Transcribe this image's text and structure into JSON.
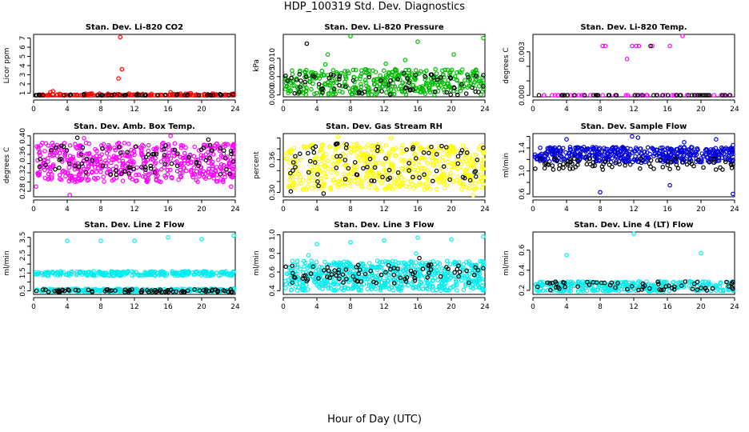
{
  "page": {
    "title": "HDP_100319  Std. Dev. Diagnostics",
    "xlabel": "Hour of Day (UTC)"
  },
  "chart_data": [
    {
      "type": "scatter",
      "title": "Stan. Dev. Li-820 CO2",
      "ylabel": "Licor ppm",
      "xlim": [
        0,
        24
      ],
      "ylim": [
        0.6,
        7.4
      ],
      "xticks": [
        0,
        4,
        8,
        12,
        16,
        20,
        24
      ],
      "yticks": [
        1,
        2,
        3,
        4,
        5,
        6,
        7
      ],
      "series": [
        {
          "color": "#ff0000",
          "band": [
            0.6,
            0.95
          ],
          "count": 160,
          "seed": 11,
          "points": [
            [
              10.3,
              7.1
            ],
            [
              10.5,
              3.6
            ],
            [
              10.1,
              2.6
            ],
            [
              2.3,
              1.2
            ],
            [
              2.0,
              1.1
            ],
            [
              16.3,
              1.1
            ],
            [
              6.2,
              0.95
            ],
            [
              18.7,
              1.0
            ],
            [
              21.3,
              0.95
            ]
          ]
        },
        {
          "color": "#000000",
          "band": [
            0.55,
            0.9
          ],
          "count": 45,
          "seed": 12,
          "points": []
        }
      ]
    },
    {
      "type": "scatter",
      "title": "Stan. Dev. Li-820 Pressure",
      "ylabel": "kPa",
      "xlim": [
        0,
        24
      ],
      "ylim": [
        -0.0005,
        0.0165
      ],
      "xticks": [
        0,
        4,
        8,
        12,
        16,
        20,
        24
      ],
      "yticks": [
        0.0,
        0.005,
        0.01
      ],
      "ytick_labels": [
        "0.000",
        "0.005",
        "0.010"
      ],
      "series": [
        {
          "color": "#00bb00",
          "band": [
            0.0,
            0.007
          ],
          "count": 400,
          "seed": 21,
          "points": [
            [
              8.0,
              0.016
            ],
            [
              24.0,
              0.0155
            ],
            [
              16.0,
              0.0145
            ],
            [
              5.3,
              0.011
            ],
            [
              20.3,
              0.011
            ],
            [
              14.5,
              0.0095
            ],
            [
              12.2,
              0.0085
            ],
            [
              5.0,
              0.0083
            ]
          ]
        },
        {
          "color": "#000000",
          "band": [
            0.0,
            0.006
          ],
          "count": 70,
          "seed": 22,
          "points": [
            [
              2.8,
              0.014
            ]
          ]
        }
      ]
    },
    {
      "type": "scatter",
      "title": "Stan. Dev. Li-820 Temp.",
      "ylabel": "degrees C",
      "xlim": [
        0,
        24
      ],
      "ylim": [
        -0.0001,
        0.0042
      ],
      "xticks": [
        0,
        4,
        8,
        12,
        16,
        20,
        24
      ],
      "yticks": [
        0.0,
        0.001,
        0.002,
        0.003
      ],
      "ytick_labels": [
        "0.000",
        "",
        "",
        "0.003"
      ],
      "series": [
        {
          "color": "#ff00ff",
          "band": [
            0.0,
            0.0
          ],
          "count": 46,
          "seed": 31,
          "points": [
            [
              8.3,
              0.0034
            ],
            [
              8.6,
              0.0034
            ],
            [
              11.2,
              0.0025
            ],
            [
              11.8,
              0.0034
            ],
            [
              12.3,
              0.0034
            ],
            [
              12.6,
              0.0034
            ],
            [
              14.2,
              0.0034
            ],
            [
              16.3,
              0.0034
            ],
            [
              17.8,
              0.0042
            ]
          ]
        },
        {
          "color": "#000000",
          "band": [
            0.0,
            0.0
          ],
          "count": 40,
          "seed": 32,
          "points": [
            [
              14.0,
              0.0034
            ]
          ]
        }
      ]
    },
    {
      "type": "scatter",
      "title": "Stan. Dev. Amb. Box Temp.",
      "ylabel": "degrees C",
      "xlim": [
        0,
        24
      ],
      "ylim": [
        0.268,
        0.405
      ],
      "xticks": [
        0,
        4,
        8,
        12,
        16,
        20,
        24
      ],
      "yticks": [
        0.28,
        0.3,
        0.32,
        0.34,
        0.36,
        0.38,
        0.4
      ],
      "ytick_labels": [
        "0.28",
        "",
        "0.32",
        "",
        "0.36",
        "",
        "0.40"
      ],
      "series": [
        {
          "color": "#ff00ff",
          "band": [
            0.3,
            0.385
          ],
          "count": 520,
          "seed": 41,
          "points": [
            [
              4.3,
              0.272
            ],
            [
              16.3,
              0.4
            ],
            [
              0.3,
              0.29
            ],
            [
              23.5,
              0.29
            ],
            [
              6.0,
              0.395
            ]
          ]
        },
        {
          "color": "#000000",
          "band": [
            0.315,
            0.38
          ],
          "count": 75,
          "seed": 42,
          "points": [
            [
              5.2,
              0.396
            ],
            [
              20.8,
              0.392
            ]
          ]
        }
      ]
    },
    {
      "type": "scatter",
      "title": "Stan. Dev. Gas Stream RH",
      "ylabel": "percent",
      "xlim": [
        0,
        24
      ],
      "ylim": [
        0.292,
        0.408
      ],
      "xticks": [
        0,
        4,
        8,
        12,
        16,
        20,
        24
      ],
      "yticks": [
        0.3,
        0.32,
        0.34,
        0.36,
        0.38,
        0.4
      ],
      "ytick_labels": [
        "0.30",
        "",
        "",
        "0.36",
        "",
        ""
      ],
      "series": [
        {
          "color": "#ffff00",
          "band": [
            0.305,
            0.39
          ],
          "count": 520,
          "seed": 51,
          "points": [
            [
              22.6,
              0.295
            ],
            [
              6.5,
              0.402
            ],
            [
              12.8,
              0.4
            ]
          ]
        },
        {
          "color": "#000000",
          "band": [
            0.32,
            0.39
          ],
          "count": 75,
          "seed": 52,
          "points": [
            [
              4.2,
              0.312
            ],
            [
              4.8,
              0.298
            ],
            [
              0.9,
              0.302
            ]
          ]
        }
      ]
    },
    {
      "type": "scatter",
      "title": "Stan. Dev. Sample Flow",
      "ylabel": "ml/min",
      "xlim": [
        0,
        24
      ],
      "ylim": [
        0.55,
        1.65
      ],
      "xticks": [
        0,
        4,
        8,
        12,
        16,
        20,
        24
      ],
      "yticks": [
        0.6,
        0.8,
        1.0,
        1.2,
        1.4,
        1.6
      ],
      "ytick_labels": [
        "0.6",
        "",
        "1.0",
        "",
        "1.4",
        ""
      ],
      "series": [
        {
          "color": "#0000dd",
          "band": [
            1.15,
            1.42
          ],
          "count": 460,
          "seed": 61,
          "points": [
            [
              8.0,
              0.63
            ],
            [
              16.3,
              0.75
            ],
            [
              23.8,
              0.6
            ],
            [
              4.0,
              1.55
            ],
            [
              11.8,
              1.6
            ],
            [
              12.5,
              1.58
            ],
            [
              21.8,
              1.55
            ],
            [
              24.0,
              1.45
            ],
            [
              18.0,
              1.5
            ]
          ]
        },
        {
          "color": "#000000",
          "band": [
            1.02,
            1.22
          ],
          "count": 80,
          "seed": 62,
          "points": [
            [
              24.0,
              1.12
            ]
          ]
        }
      ]
    },
    {
      "type": "scatter",
      "title": "Stan. Dev. Line 2 Flow",
      "ylabel": "ml/min",
      "xlim": [
        0,
        24
      ],
      "ylim": [
        0.3,
        3.8
      ],
      "xticks": [
        0,
        4,
        8,
        12,
        16,
        20,
        24
      ],
      "yticks": [
        0.5,
        1.0,
        1.5,
        2.0,
        2.5,
        3.0,
        3.5
      ],
      "ytick_labels": [
        "0.5",
        "",
        "1.5",
        "",
        "2.5",
        "",
        "3.5"
      ],
      "series": [
        {
          "color": "#00eeee",
          "band": [
            1.35,
            1.6
          ],
          "count": 260,
          "seed": 71,
          "points": [
            [
              4.0,
              3.3
            ],
            [
              8.0,
              3.3
            ],
            [
              12.0,
              3.3
            ],
            [
              16.0,
              3.5
            ],
            [
              20.0,
              3.4
            ],
            [
              24.0,
              3.6
            ]
          ]
        },
        {
          "color": "#00eeee",
          "band": [
            0.45,
            0.62
          ],
          "count": 260,
          "seed": 73,
          "points": []
        },
        {
          "color": "#000000",
          "band": [
            0.42,
            0.58
          ],
          "count": 80,
          "seed": 72,
          "points": []
        }
      ]
    },
    {
      "type": "scatter",
      "title": "Stan. Dev. Line 3 Flow",
      "ylabel": "ml/min",
      "xlim": [
        0,
        24
      ],
      "ylim": [
        0.36,
        1.03
      ],
      "xticks": [
        0,
        4,
        8,
        12,
        16,
        20,
        24
      ],
      "yticks": [
        0.4,
        0.6,
        0.8,
        1.0
      ],
      "ytick_labels": [
        "0.4",
        "0.6",
        "0.8",
        "1.0"
      ],
      "series": [
        {
          "color": "#00eeee",
          "band": [
            0.4,
            0.72
          ],
          "count": 620,
          "seed": 81,
          "points": [
            [
              4.0,
              0.9
            ],
            [
              8.0,
              0.92
            ],
            [
              12.0,
              0.94
            ],
            [
              16.0,
              0.97
            ],
            [
              20.0,
              0.95
            ],
            [
              24.0,
              0.98
            ],
            [
              15.8,
              0.8
            ],
            [
              3.0,
              0.78
            ]
          ]
        },
        {
          "color": "#000000",
          "band": [
            0.48,
            0.68
          ],
          "count": 80,
          "seed": 82,
          "points": [
            [
              16.2,
              0.75
            ]
          ]
        }
      ]
    },
    {
      "type": "scatter",
      "title": "Stan. Dev. Line 4 (LT) Flow",
      "ylabel": "ml/min",
      "xlim": [
        0,
        24
      ],
      "ylim": [
        0.16,
        0.78
      ],
      "xticks": [
        0,
        4,
        8,
        12,
        16,
        20,
        24
      ],
      "yticks": [
        0.2,
        0.4,
        0.6
      ],
      "ytick_labels": [
        "0.2",
        "0.4",
        "0.6"
      ],
      "series": [
        {
          "color": "#00eeee",
          "band": [
            0.19,
            0.29
          ],
          "count": 320,
          "seed": 91,
          "points": [
            [
              4.0,
              0.55
            ],
            [
              12.0,
              0.78
            ],
            [
              20.0,
              0.57
            ]
          ]
        },
        {
          "color": "#000000",
          "band": [
            0.2,
            0.29
          ],
          "count": 60,
          "seed": 92,
          "points": []
        }
      ]
    }
  ]
}
